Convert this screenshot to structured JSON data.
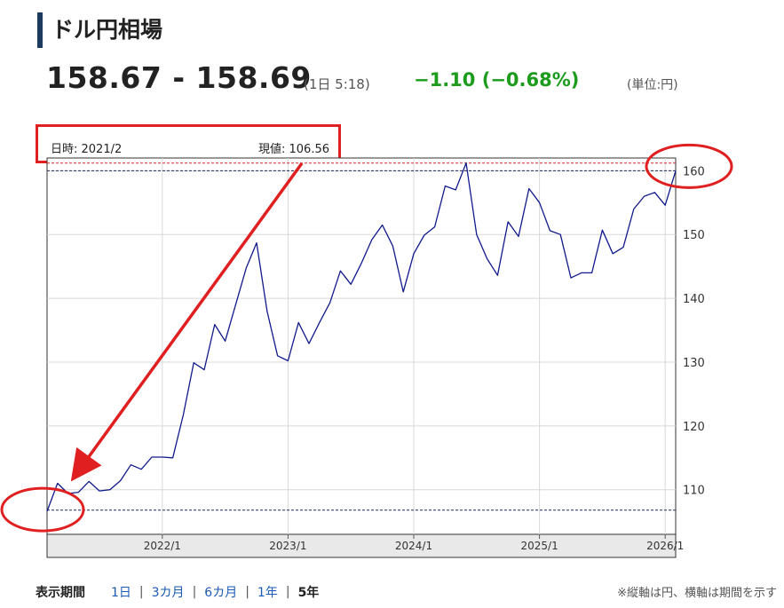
{
  "header": {
    "title": "ドル円相場",
    "price": "158.67 - 158.69",
    "time": "(1日 5:18)",
    "change": "−1.10 (−0.68%)",
    "unit": "(単位:円)"
  },
  "info": {
    "date_label": "日時: 2021/2",
    "value_label": "現値: 106.56"
  },
  "period_selector": {
    "label": "表示期間",
    "options": [
      "1日",
      "3カ月",
      "6カ月",
      "1年",
      "5年"
    ],
    "active": "5年"
  },
  "note": "※縦軸は円、横軸は期間を示す",
  "colors": {
    "line": "#101a8c",
    "annotation": "#e02020",
    "change": "#1d9b1d",
    "title_bar": "#1e3a5f"
  },
  "chart_data": {
    "type": "line",
    "title": "",
    "xlabel": "",
    "ylabel": "",
    "x_ticks": [
      "2022/1",
      "2023/1",
      "2024/1",
      "2025/1",
      "2026/1"
    ],
    "y_ticks": [
      110,
      120,
      130,
      140,
      150,
      160
    ],
    "ylim": [
      103,
      162
    ],
    "grid": true,
    "y_axis_position": "right",
    "reference_lines": {
      "high": 161.2,
      "current": 160.0,
      "low": 106.8
    },
    "series": [
      {
        "x": [
          "2021/2",
          "2021/3",
          "2021/4",
          "2021/5",
          "2021/6",
          "2021/7",
          "2021/8",
          "2021/9",
          "2021/10",
          "2021/11",
          "2021/12",
          "2022/1",
          "2022/2",
          "2022/3",
          "2022/4",
          "2022/5",
          "2022/6",
          "2022/7",
          "2022/8",
          "2022/9",
          "2022/10",
          "2022/11",
          "2022/12",
          "2023/1",
          "2023/2",
          "2023/3",
          "2023/4",
          "2023/5",
          "2023/6",
          "2023/7",
          "2023/8",
          "2023/9",
          "2023/10",
          "2023/11",
          "2023/12",
          "2024/1",
          "2024/2",
          "2024/3",
          "2024/4",
          "2024/5",
          "2024/6",
          "2024/7",
          "2024/8",
          "2024/9",
          "2024/10",
          "2024/11",
          "2024/12",
          "2025/1",
          "2025/2",
          "2025/3",
          "2025/4",
          "2025/5",
          "2025/6",
          "2025/7",
          "2025/8",
          "2025/9",
          "2025/10",
          "2025/11",
          "2025/12",
          "2026/1",
          "2026/2"
        ],
        "values": [
          106.6,
          111.0,
          109.4,
          109.6,
          111.3,
          109.8,
          110.0,
          111.4,
          113.9,
          113.2,
          115.1,
          115.1,
          115.0,
          121.7,
          129.9,
          128.8,
          135.9,
          133.3,
          139.0,
          144.7,
          148.7,
          138.0,
          131.0,
          130.2,
          136.2,
          132.9,
          136.2,
          139.3,
          144.3,
          142.2,
          145.5,
          149.2,
          151.5,
          148.2,
          141.0,
          147.0,
          149.9,
          151.2,
          157.6,
          157.0,
          161.2,
          150.0,
          146.2,
          143.6,
          152.0,
          149.7,
          157.2,
          155.0,
          150.6,
          150.0,
          143.2,
          144.0,
          144.0,
          150.7,
          147.0,
          148.0,
          154.0,
          156.0,
          156.6,
          154.6,
          160.0
        ]
      }
    ]
  }
}
